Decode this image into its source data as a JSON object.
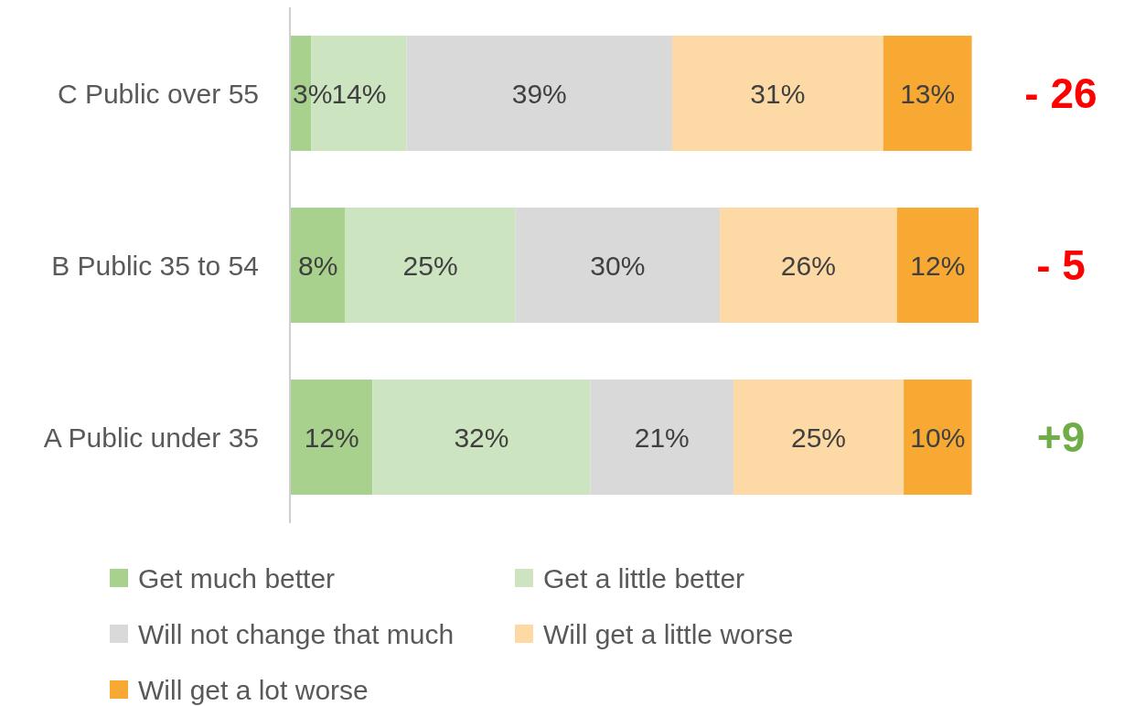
{
  "chart_data": {
    "type": "bar",
    "orientation": "horizontal",
    "stacked": true,
    "categories": [
      "C Public over 55",
      "B Public 35 to 54",
      "A Public under 35"
    ],
    "series": [
      {
        "name": "Get much better",
        "color": "#a9d18e",
        "values": [
          3,
          8,
          12
        ],
        "value_labels": [
          "3%",
          "8%",
          "12%"
        ]
      },
      {
        "name": "Get a little better",
        "color": "#cde4c0",
        "values": [
          14,
          25,
          32
        ],
        "value_labels": [
          "14%",
          "25%",
          "32%"
        ]
      },
      {
        "name": "Will not change that much",
        "color": "#d9d9d9",
        "values": [
          39,
          30,
          21
        ],
        "value_labels": [
          "39%",
          "30%",
          "21%"
        ]
      },
      {
        "name": "Will get a little worse",
        "color": "#fdd9a5",
        "values": [
          31,
          26,
          25
        ],
        "value_labels": [
          "31%",
          "26%",
          "25%"
        ]
      },
      {
        "name": "Will get a lot worse",
        "color": "#f7a934",
        "values": [
          13,
          12,
          10
        ],
        "value_labels": [
          "13%",
          "12%",
          "10%"
        ]
      }
    ],
    "annotations": [
      "- 26",
      "- 5",
      "+9"
    ],
    "legend": "bottom"
  }
}
